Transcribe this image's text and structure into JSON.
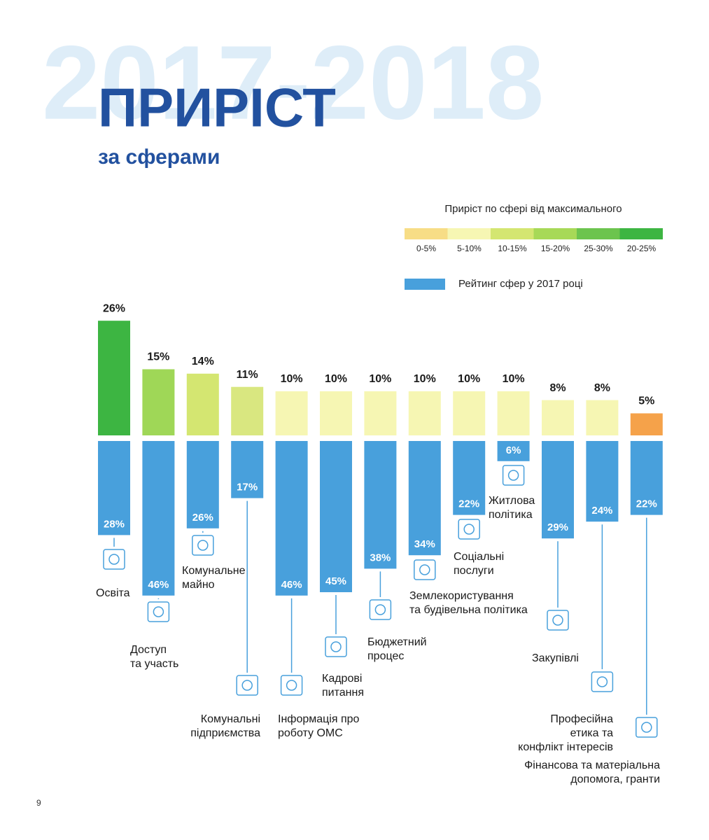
{
  "header": {
    "background_title": "2017-2018",
    "title": "ПРИРІСТ",
    "subtitle": "за сферами"
  },
  "page_number": "9",
  "chart_data": {
    "type": "bar",
    "categories": [
      "Освіта",
      "Доступ та участь",
      "Комунальне майно",
      "Комунальні підприємства",
      "Інформація про роботу ОМС",
      "Кадрові питання",
      "Бюджетний процес",
      "Землекористування та будівельна політика",
      "Соціальні послуги",
      "Житлова політика",
      "Закупівлі",
      "Професійна етика та конфлікт інтересів",
      "Фінансова та матеріальна допомога, гранти"
    ],
    "series": [
      {
        "name": "Приріст по сфері від максимального",
        "values": [
          26,
          15,
          14,
          11,
          10,
          10,
          10,
          10,
          10,
          10,
          8,
          8,
          5
        ],
        "value_labels": [
          "26%",
          "15%",
          "14%",
          "11%",
          "10%",
          "10%",
          "10%",
          "10%",
          "10%",
          "10%",
          "8%",
          "8%",
          "5%"
        ],
        "colors": [
          "#3db542",
          "#9fd757",
          "#d4e671",
          "#d9e780",
          "#f6f6b3",
          "#f6f6b3",
          "#f6f6b3",
          "#f6f6b3",
          "#f6f6b3",
          "#f6f6b3",
          "#f6f6b3",
          "#f6f6b3",
          "#f5a24a"
        ],
        "legend": [
          {
            "label": "0-5%",
            "color": "#f7dd86"
          },
          {
            "label": "5-10%",
            "color": "#f6f6b3"
          },
          {
            "label": "10-15%",
            "color": "#d4e671"
          },
          {
            "label": "15-20%",
            "color": "#a7d957"
          },
          {
            "label": "25-30%",
            "color": "#6cc44e"
          },
          {
            "label": "20-25%",
            "color": "#3db542"
          }
        ]
      },
      {
        "name": "Рейтинг сфер у 2017 році",
        "color": "#48a0dc",
        "values": [
          28,
          46,
          26,
          17,
          46,
          45,
          38,
          34,
          22,
          6,
          29,
          24,
          22
        ],
        "value_labels": [
          "28%",
          "46%",
          "26%",
          "17%",
          "46%",
          "45%",
          "38%",
          "34%",
          "22%",
          "6%",
          "29%",
          "24%",
          "22%"
        ]
      }
    ]
  }
}
